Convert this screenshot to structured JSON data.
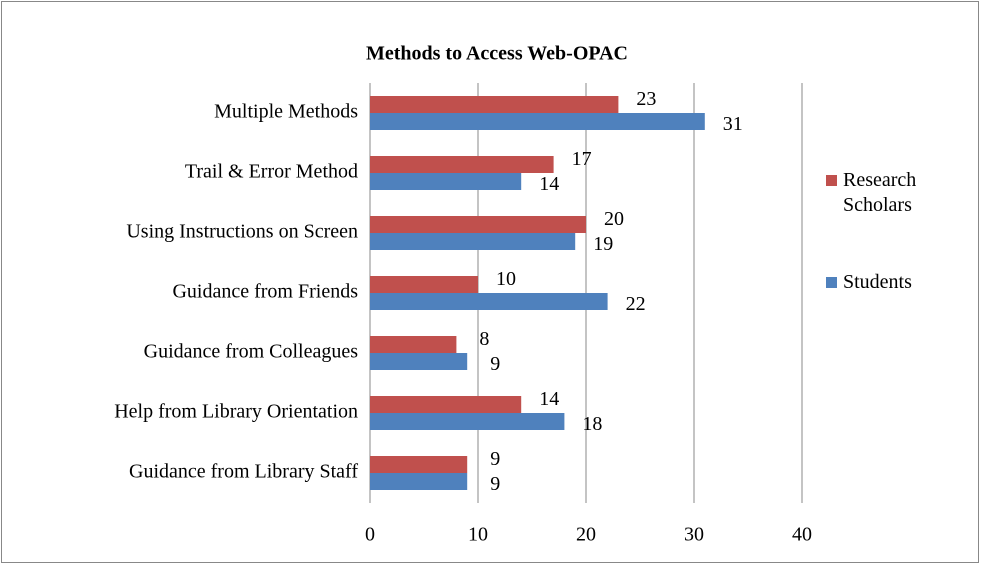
{
  "chart_data": {
    "type": "hbar",
    "title": "Methods to Access Web-OPAC",
    "categories": [
      "Multiple Methods",
      "Trail & Error Method",
      "Using Instructions on Screen",
      "Guidance from Friends",
      "Guidance from Colleagues",
      "Help from Library Orientation",
      "Guidance from Library Staff"
    ],
    "series": [
      {
        "name": "Research Scholars",
        "color": "#c0504d",
        "values": [
          23,
          17,
          20,
          10,
          8,
          14,
          9
        ]
      },
      {
        "name": "Students",
        "color": "#4f81bd",
        "values": [
          31,
          14,
          19,
          22,
          9,
          18,
          9
        ]
      }
    ],
    "xlim": [
      0,
      40
    ],
    "xticks": [
      0,
      10,
      20,
      30,
      40
    ],
    "grid": true,
    "legend": "right"
  }
}
